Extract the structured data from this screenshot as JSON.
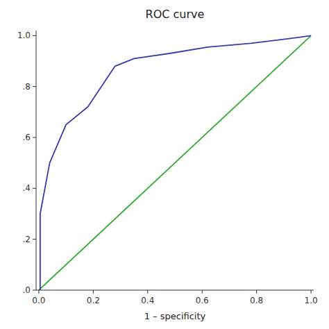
{
  "chart_data": {
    "type": "line",
    "title": "ROC curve",
    "xlabel": "1 – specificity",
    "series": [
      {
        "color": "#33aa33",
        "x": [
          0.0,
          1.0
        ],
        "values": [
          0.0,
          1.0
        ]
      },
      {
        "color": "#3a3aaa",
        "x": [
          0.0,
          0.005,
          0.005,
          0.04,
          0.1,
          0.18,
          0.28,
          0.35,
          0.48,
          0.62,
          0.78,
          0.92,
          1.0
        ],
        "values": [
          0.0,
          0.0,
          0.3,
          0.5,
          0.65,
          0.72,
          0.88,
          0.91,
          0.93,
          0.955,
          0.97,
          0.988,
          1.0
        ]
      }
    ],
    "xlim": [
      -0.01,
      1.01
    ],
    "ylim": [
      0.0,
      1.02
    ],
    "xticks": [
      {
        "value": 0.0,
        "label": "0.0"
      },
      0.2,
      0.4,
      0.6,
      0.8,
      {
        "value": 1.0,
        "label": "1.0"
      }
    ],
    "yticks": [
      {
        "value": 0.0,
        "label": ".0"
      },
      {
        "value": 0.2,
        "label": ".2"
      },
      {
        "value": 0.4,
        "label": ".4"
      },
      {
        "value": 0.6,
        "label": ".6"
      },
      {
        "value": 0.8,
        "label": ".8"
      },
      {
        "value": 1.0,
        "label": "1.0"
      }
    ],
    "grid": false
  }
}
